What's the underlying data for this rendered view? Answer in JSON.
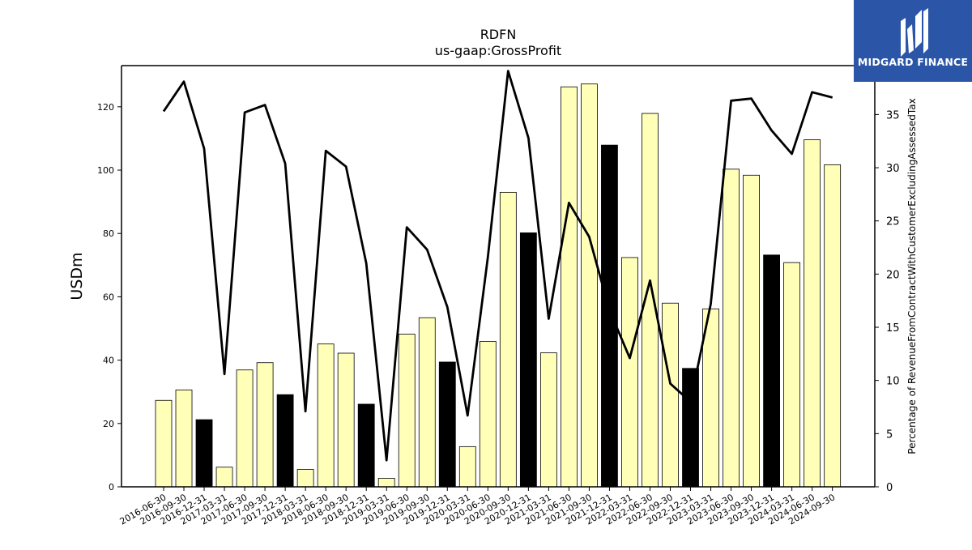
{
  "chart_data": {
    "type": "bar",
    "title": "RDFN",
    "subtitle": "us-gaap:GrossProfit",
    "ylabel": "USDm",
    "y2label": "Percentage of RevenueFromContractWithCustomerExcludingAssessedTax",
    "ylim": [
      0,
      133
    ],
    "y2lim": [
      0,
      39.6
    ],
    "yticks": [
      0,
      20,
      40,
      60,
      80,
      100,
      120
    ],
    "y2ticks": [
      0,
      5,
      10,
      15,
      20,
      25,
      30,
      35
    ],
    "categories": [
      "2016-06-30",
      "2016-09-30",
      "2016-12-31",
      "2017-03-31",
      "2017-06-30",
      "2017-09-30",
      "2017-12-31",
      "2018-03-31",
      "2018-06-30",
      "2018-09-30",
      "2018-12-31",
      "2019-03-31",
      "2019-06-30",
      "2019-09-30",
      "2019-12-31",
      "2020-03-31",
      "2020-06-30",
      "2020-09-30",
      "2020-12-31",
      "2021-03-31",
      "2021-06-30",
      "2021-09-30",
      "2021-12-31",
      "2022-03-31",
      "2022-06-30",
      "2022-09-30",
      "2022-12-31",
      "2023-03-31",
      "2023-06-30",
      "2023-09-30",
      "2023-12-31",
      "2024-03-31",
      "2024-06-30",
      "2024-09-30"
    ],
    "series": [
      {
        "type": "bar",
        "values": [
          27.3,
          30.6,
          21.2,
          6.2,
          36.9,
          39.2,
          29.1,
          5.5,
          45.1,
          42.2,
          26.1,
          2.7,
          48.2,
          53.4,
          39.4,
          12.7,
          45.9,
          93.0,
          80.2,
          42.3,
          126.3,
          127.2,
          107.9,
          72.4,
          117.9,
          58.0,
          37.4,
          56.2,
          100.3,
          98.4,
          73.2,
          70.8,
          109.6,
          101.7
        ],
        "highlight": [
          false,
          false,
          true,
          false,
          false,
          false,
          true,
          false,
          false,
          false,
          true,
          false,
          false,
          false,
          true,
          false,
          false,
          false,
          true,
          false,
          false,
          false,
          true,
          false,
          false,
          false,
          true,
          false,
          false,
          false,
          true,
          false,
          false,
          false
        ]
      },
      {
        "type": "line",
        "values": [
          35.3,
          38.1,
          31.8,
          10.6,
          35.2,
          35.9,
          30.4,
          7.1,
          31.6,
          30.1,
          21.0,
          2.5,
          24.4,
          22.3,
          16.9,
          6.7,
          21.6,
          39.1,
          32.8,
          15.8,
          26.7,
          23.5,
          16.6,
          12.1,
          19.4,
          9.7,
          8.0,
          17.2,
          36.3,
          36.5,
          33.5,
          31.3,
          37.1,
          36.6
        ]
      }
    ],
    "colors": {
      "bar": "#ffffb8",
      "bar_highlight": "#000000",
      "bar_edge": "#000000",
      "line": "#000000"
    },
    "grid": false,
    "legend": "none"
  },
  "logo": {
    "text": "MIDGARD FINANCE",
    "background": "#2b56a8",
    "icon": "midgard-m-icon"
  }
}
